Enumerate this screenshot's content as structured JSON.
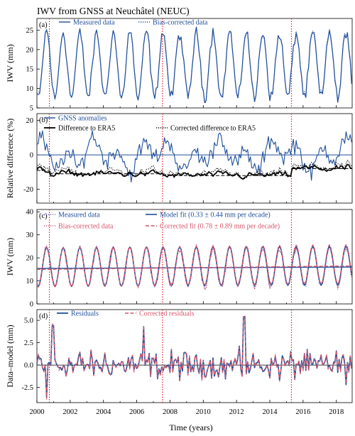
{
  "figure": {
    "title": "IWV from GNSS at Neuchâtel (NEUC)",
    "xlabel": "Time (years)",
    "x_ticks": [
      "2000",
      "2002",
      "2004",
      "2006",
      "2008",
      "2010",
      "2012",
      "2014",
      "2016",
      "2018"
    ],
    "x_range": [
      2000,
      2018.95
    ],
    "breakpoints": [
      2000.75,
      2007.55,
      2015.3
    ]
  },
  "colors": {
    "blue": "#1f4e9a",
    "black": "#000000",
    "red_dotted": "#e0202a",
    "pink": "#d5566a",
    "lavender": "#7b68c8"
  },
  "chart_data": [
    {
      "type": "line",
      "panel": "(a)",
      "ylabel": "IWV (mm)",
      "ylim": [
        5,
        28
      ],
      "y_ticks": [
        5,
        10,
        15,
        20,
        25
      ],
      "legend": [
        "Measured data",
        "Bias-corrected data"
      ],
      "seasonal_model": {
        "mean": 16,
        "amplitude": 8.5,
        "peak_month": 7.5,
        "unit": "mm"
      },
      "series": [
        {
          "name": "Measured data",
          "style": "solid",
          "color": "blue"
        },
        {
          "name": "Bias-corrected data",
          "style": "dotted",
          "color": "blue"
        }
      ]
    },
    {
      "type": "line",
      "panel": "(b)",
      "ylabel": "Relative difference (%)",
      "ylim": [
        -28,
        24
      ],
      "y_ticks": [
        -20,
        0,
        20
      ],
      "legend": [
        "GNSS anomalies",
        "Difference to ERA5",
        "Corrected difference to ERA5"
      ],
      "segment_means": [
        {
          "from": 2000.0,
          "to": 2000.75,
          "value": -9
        },
        {
          "from": 2000.75,
          "to": 2007.55,
          "value": -11
        },
        {
          "from": 2007.55,
          "to": 2015.3,
          "value": -12
        },
        {
          "from": 2015.3,
          "to": 2018.95,
          "value": -8
        }
      ],
      "series": [
        {
          "name": "GNSS anomalies",
          "style": "solid",
          "color": "blue"
        },
        {
          "name": "Difference to ERA5",
          "style": "solid-thick",
          "color": "black"
        },
        {
          "name": "Corrected difference to ERA5",
          "style": "dotted",
          "color": "black"
        }
      ]
    },
    {
      "type": "line",
      "panel": "(c)",
      "ylabel": "IWV (mm)",
      "ylim": [
        0,
        41
      ],
      "y_ticks": [
        0,
        10,
        20,
        30,
        40
      ],
      "legend": [
        "Measured data",
        "Bias-corrected data",
        "Model fit (0.33 ± 0.44 mm per decade)",
        "Corrected fit (0.78 ± 0.89 mm per decade)"
      ],
      "trend_lines": [
        {
          "name": "Model fit",
          "start": 15.4,
          "slope_per_decade": 0.33
        },
        {
          "name": "Corrected fit",
          "start": 15.0,
          "slope_per_decade": 0.78
        }
      ],
      "series": [
        {
          "name": "Measured data",
          "style": "dotted",
          "color": "lavender"
        },
        {
          "name": "Bias-corrected data",
          "style": "dotted",
          "color": "pink"
        },
        {
          "name": "Model fit (0.33 ± 0.44 mm per decade)",
          "style": "solid",
          "color": "blue"
        },
        {
          "name": "Corrected fit (0.78 ± 0.89 mm per decade)",
          "style": "dashed",
          "color": "pink"
        }
      ]
    },
    {
      "type": "line",
      "panel": "(d)",
      "ylabel": "Data–model (mm)",
      "ylim": [
        -4.2,
        6.2
      ],
      "y_ticks": [
        "5.0",
        "2.5",
        "0.0",
        "-2.5"
      ],
      "y_tick_values": [
        5.0,
        2.5,
        0.0,
        -2.5
      ],
      "legend": [
        "Residuals",
        "Corrected residuals"
      ],
      "series": [
        {
          "name": "Residuals",
          "style": "solid",
          "color": "blue"
        },
        {
          "name": "Corrected residuals",
          "style": "dashed",
          "color": "pink"
        }
      ]
    }
  ]
}
